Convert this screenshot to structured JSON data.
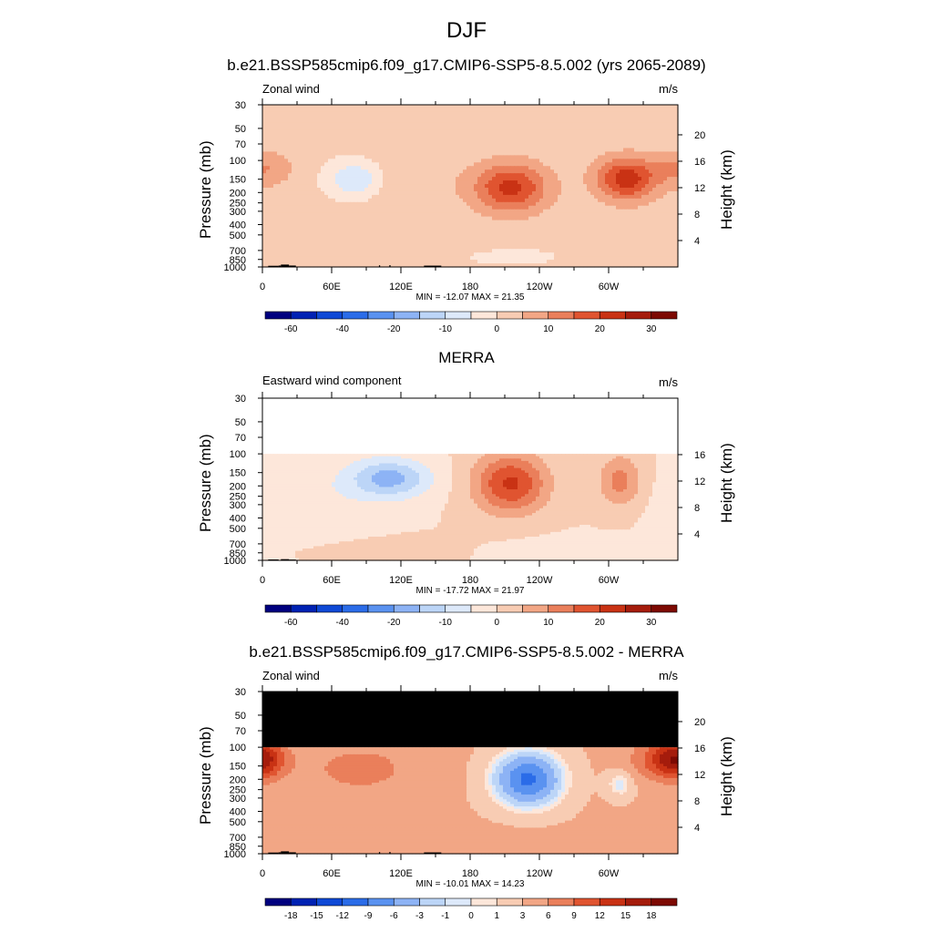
{
  "main_title": "DJF",
  "colors": {
    "black": "#000000",
    "missing": "#ffffff",
    "mask": "#000000"
  },
  "palette": [
    "#00007f",
    "#0022b3",
    "#0f49d6",
    "#2b6ce8",
    "#5a92f0",
    "#8db3f5",
    "#bcd5f7",
    "#dde9fa",
    "#fde7da",
    "#f8ccb3",
    "#f2a685",
    "#ea7f5b",
    "#e05430",
    "#c93214",
    "#a51c0c",
    "#7d0a03"
  ],
  "chart_data": [
    {
      "type": "contour",
      "title": "b.e21.BSSP585cmip6.f09_g17.CMIP6-SSP5-8.5.002 (yrs 2065-2089)",
      "left_string": "Zonal wind",
      "right_string": "m/s",
      "ylabel": "Pressure (mb)",
      "right_ylabel": "Height (km)",
      "x_ticks": [
        "0",
        "60E",
        "120E",
        "180",
        "120W",
        "60W"
      ],
      "y_ticks": [
        "30",
        "50",
        "70",
        "100",
        "150",
        "200",
        "250",
        "300",
        "400",
        "500",
        "700",
        "850",
        "1000"
      ],
      "height_ticks": [
        "20",
        "16",
        "12",
        "8",
        "4"
      ],
      "min_max": "MIN = -12.07  MAX =  21.35",
      "colorbar_labels": [
        "-60",
        "-40",
        "-20",
        "-10",
        "0",
        "10",
        "20",
        "30"
      ],
      "ylim": [
        1000,
        30
      ],
      "data_top": 30,
      "features": [
        {
          "x": 0,
          "p": 120,
          "sx": 18,
          "sd": 0.28,
          "amp": 8
        },
        {
          "x": 80,
          "p": 150,
          "sx": 18,
          "sd": 0.3,
          "amp": -12
        },
        {
          "x": 125,
          "p": 160,
          "sx": 32,
          "sd": 0.5,
          "amp": 3
        },
        {
          "x": 215,
          "p": 180,
          "sx": 22,
          "sd": 0.36,
          "amp": 20
        },
        {
          "x": 315,
          "p": 150,
          "sx": 18,
          "sd": 0.32,
          "amp": 21
        },
        {
          "x": 120,
          "p": 750,
          "sx": 60,
          "sd": 0.25,
          "amp": 3
        },
        {
          "x": 200,
          "p": 800,
          "sx": 50,
          "sd": 0.2,
          "amp": -4
        }
      ],
      "base": 2
    },
    {
      "type": "contour",
      "title": "MERRA",
      "left_string": "Eastward wind component",
      "right_string": "m/s",
      "ylabel": "Pressure (mb)",
      "right_ylabel": "Height (km)",
      "x_ticks": [
        "0",
        "60E",
        "120E",
        "180",
        "120W",
        "60W"
      ],
      "y_ticks": [
        "30",
        "50",
        "70",
        "100",
        "150",
        "200",
        "250",
        "300",
        "400",
        "500",
        "700",
        "850",
        "1000"
      ],
      "height_ticks": [
        "16",
        "12",
        "8",
        "4"
      ],
      "min_max": "MIN = -17.72  MAX =  21.97",
      "colorbar_labels": [
        "-60",
        "-40",
        "-20",
        "-10",
        "0",
        "10",
        "20",
        "30"
      ],
      "ylim": [
        1000,
        30
      ],
      "data_top": 100,
      "features": [
        {
          "x": 110,
          "p": 170,
          "sx": 25,
          "sd": 0.3,
          "amp": -17
        },
        {
          "x": 40,
          "p": 300,
          "sx": 40,
          "sd": 0.6,
          "amp": -4
        },
        {
          "x": 215,
          "p": 190,
          "sx": 22,
          "sd": 0.45,
          "amp": 21
        },
        {
          "x": 310,
          "p": 180,
          "sx": 13,
          "sd": 0.4,
          "amp": 12
        },
        {
          "x": 270,
          "p": 850,
          "sx": 40,
          "sd": 0.2,
          "amp": -4
        },
        {
          "x": 90,
          "p": 800,
          "sx": 50,
          "sd": 0.2,
          "amp": 2
        }
      ],
      "base": 0
    },
    {
      "type": "contour",
      "title": "b.e21.BSSP585cmip6.f09_g17.CMIP6-SSP5-8.5.002 - MERRA",
      "left_string": "Zonal wind",
      "right_string": "m/s",
      "ylabel": "Pressure (mb)",
      "right_ylabel": "Height (km)",
      "x_ticks": [
        "0",
        "60E",
        "120E",
        "180",
        "120W",
        "60W"
      ],
      "y_ticks": [
        "30",
        "50",
        "70",
        "100",
        "150",
        "200",
        "250",
        "300",
        "400",
        "500",
        "700",
        "850",
        "1000"
      ],
      "height_ticks": [
        "20",
        "16",
        "12",
        "8",
        "4"
      ],
      "min_max": "MIN = -10.01  MAX =  14.23",
      "colorbar_labels": [
        "-18",
        "-15",
        "-12",
        "-9",
        "-6",
        "-3",
        "-1",
        "0",
        "1",
        "3",
        "6",
        "9",
        "12",
        "15",
        "18"
      ],
      "ylim": [
        1000,
        30
      ],
      "data_top": 100,
      "masked_above": 100,
      "features": [
        {
          "x": 230,
          "p": 200,
          "sx": 20,
          "sd": 0.4,
          "amp": -13
        },
        {
          "x": 85,
          "p": 160,
          "sx": 35,
          "sd": 0.4,
          "amp": 4
        },
        {
          "x": 350,
          "p": 130,
          "sx": 20,
          "sd": 0.3,
          "amp": 9
        },
        {
          "x": 0,
          "p": 130,
          "sx": 12,
          "sd": 0.3,
          "amp": 7
        },
        {
          "x": 310,
          "p": 220,
          "sx": 8,
          "sd": 0.2,
          "amp": -4
        },
        {
          "x": 180,
          "p": 800,
          "sx": 60,
          "sd": 0.2,
          "amp": 1.5
        }
      ],
      "base": 3.2
    }
  ]
}
